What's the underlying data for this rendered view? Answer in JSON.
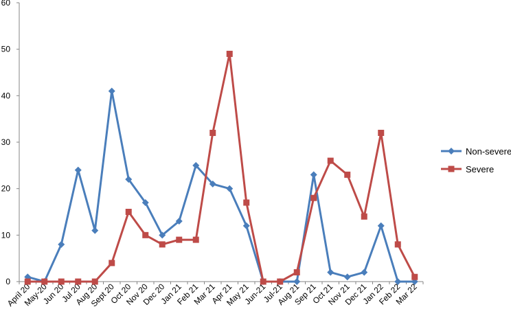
{
  "chart_data": {
    "type": "line",
    "title": "",
    "xlabel": "",
    "ylabel": "",
    "categories": [
      "April 20",
      "May-20",
      "Jun 20",
      "Jul 20",
      "Aug 20",
      "Sept 20",
      "Oct 20",
      "Nov 20",
      "Dec 20",
      "Jan 21",
      "Feb 21",
      "Mar 21",
      "Apr 21",
      "May 21",
      "Jun-21",
      "Jul-21",
      "Aug 21",
      "Sep 21",
      "Oct 21",
      "Nov 21",
      "Dec 21",
      "Jan 22",
      "Feb 22",
      "Mar 22"
    ],
    "ylim": [
      0,
      60
    ],
    "yticks": [
      0,
      10,
      20,
      30,
      40,
      50,
      60
    ],
    "grid": false,
    "legend_position": "right",
    "series": [
      {
        "name": "Non-severe",
        "color": "#4a7ebb",
        "marker": "diamond",
        "values": [
          1,
          0,
          8,
          24,
          11,
          41,
          22,
          17,
          10,
          13,
          25,
          21,
          20,
          12,
          0,
          0,
          0,
          23,
          2,
          1,
          2,
          12,
          0,
          0
        ]
      },
      {
        "name": "Severe",
        "color": "#be4b48",
        "marker": "square",
        "values": [
          0,
          0,
          0,
          0,
          0,
          4,
          15,
          10,
          8,
          9,
          9,
          32,
          49,
          17,
          0,
          0,
          2,
          18,
          26,
          23,
          14,
          32,
          8,
          1
        ]
      }
    ]
  }
}
